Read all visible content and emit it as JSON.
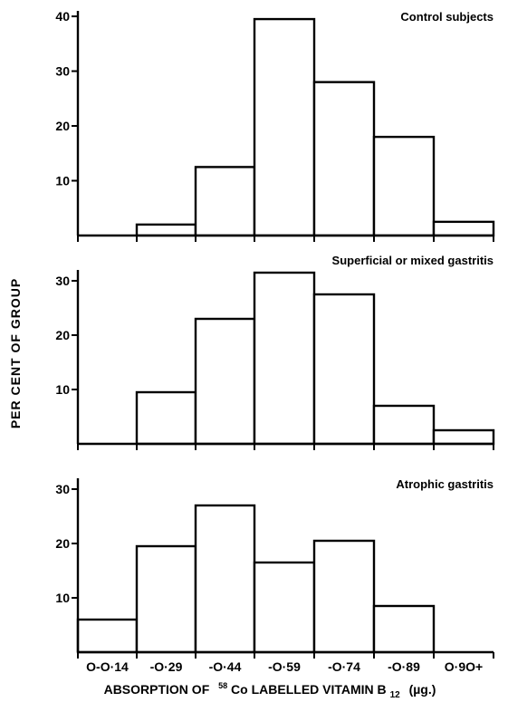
{
  "chart_data": [
    {
      "type": "bar",
      "title": "Control subjects",
      "categories": [
        "O-O·14",
        "-O·29",
        "-O·44",
        "-O·59",
        "-O·74",
        "-O·89",
        "O·9O+"
      ],
      "values": [
        0,
        2,
        12.5,
        39.5,
        28,
        18,
        2.5
      ],
      "yticks": [
        "10",
        "20",
        "30",
        "40"
      ],
      "ylim": [
        0,
        41
      ],
      "grid": false
    },
    {
      "type": "bar",
      "title": "Superficial or mixed gastritis",
      "categories": [
        "O-O·14",
        "-O·29",
        "-O·44",
        "-O·59",
        "-O·74",
        "-O·89",
        "O·9O+"
      ],
      "values": [
        0,
        9.5,
        23,
        31.5,
        27.5,
        7,
        2.5
      ],
      "yticks": [
        "10",
        "20",
        "30"
      ],
      "ylim": [
        0,
        32
      ],
      "grid": false
    },
    {
      "type": "bar",
      "title": "Atrophic gastritis",
      "categories": [
        "O-O·14",
        "-O·29",
        "-O·44",
        "-O·59",
        "-O·74",
        "-O·89",
        "O·9O+"
      ],
      "values": [
        6,
        19.5,
        27,
        16.5,
        20.5,
        8.5,
        0
      ],
      "yticks": [
        "10",
        "20",
        "30"
      ],
      "ylim": [
        0,
        32
      ],
      "grid": false
    }
  ],
  "axes": {
    "ylabel": "PER CENT OF GROUP",
    "xlabel_prefix": "ABSORPTION OF",
    "xlabel_isotope_sup": "58",
    "xlabel_isotope": "Co LABELLED VITAMIN B",
    "xlabel_sub": "12",
    "xlabel_unit": "(µg.)",
    "xcategories": [
      "O-O·14",
      "-O·29",
      "-O·44",
      "-O·59",
      "-O·74",
      "-O·89",
      "O·9O+"
    ]
  }
}
